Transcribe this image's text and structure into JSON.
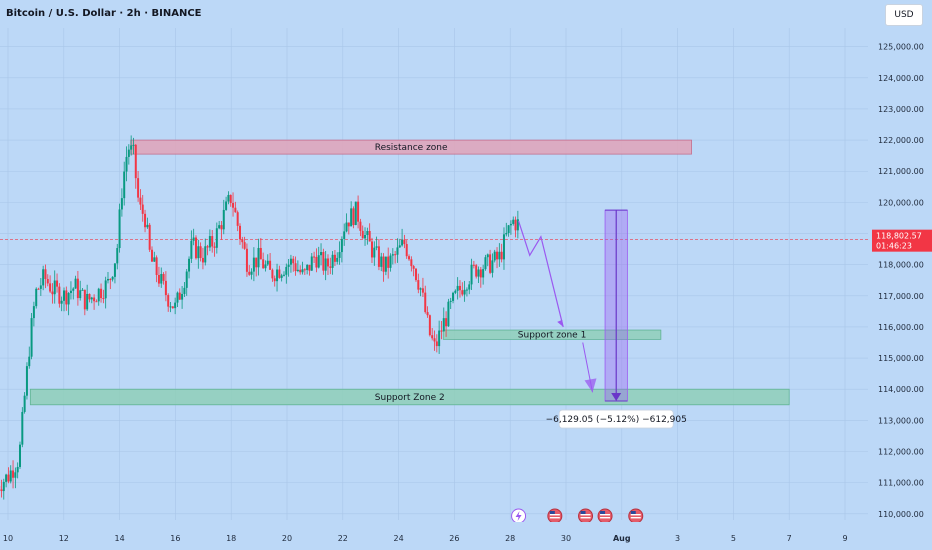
{
  "title": "Bitcoin / U.S. Dollar · 2h · BINANCE",
  "currency_button": "USD",
  "colors": {
    "background": "#bcd8f7",
    "up": "#089981",
    "down": "#f23645",
    "resistance": "#e0a3b8",
    "support": "#8fcfb9",
    "projection": "#9b59f0"
  },
  "chart_data": {
    "type": "candlestick",
    "title": "Bitcoin / U.S. Dollar · 2h · BINANCE",
    "y_ticks": [
      110000,
      111000,
      112000,
      113000,
      114000,
      115000,
      116000,
      117000,
      118000,
      119000,
      120000,
      121000,
      122000,
      123000,
      124000,
      125000
    ],
    "y_tick_labels": [
      "110,000.00",
      "111,000.00",
      "112,000.00",
      "113,000.00",
      "114,000.00",
      "115,000.00",
      "116,000.00",
      "117,000.00",
      "118,000.00",
      "119,000.00",
      "120,000.00",
      "121,000.00",
      "122,000.00",
      "123,000.00",
      "124,000.00",
      "125,000.00"
    ],
    "ylim": [
      109800,
      125600
    ],
    "x_tick_labels": [
      "10",
      "12",
      "14",
      "16",
      "18",
      "20",
      "22",
      "24",
      "26",
      "28",
      "30",
      "Aug",
      "3",
      "5",
      "7",
      "9"
    ],
    "current_price": {
      "price": "118,802.57",
      "countdown": "01:46:23",
      "value": 118802.57
    },
    "price_path": [
      {
        "d": 9.6,
        "p": 110900
      },
      {
        "d": 10.0,
        "p": 111200
      },
      {
        "d": 10.4,
        "p": 111800
      },
      {
        "d": 10.6,
        "p": 113800
      },
      {
        "d": 10.8,
        "p": 115700
      },
      {
        "d": 11.0,
        "p": 117100
      },
      {
        "d": 11.3,
        "p": 117600
      },
      {
        "d": 11.6,
        "p": 117200
      },
      {
        "d": 12.0,
        "p": 117000
      },
      {
        "d": 12.4,
        "p": 117300
      },
      {
        "d": 12.8,
        "p": 116800
      },
      {
        "d": 13.2,
        "p": 117100
      },
      {
        "d": 13.6,
        "p": 117400
      },
      {
        "d": 13.9,
        "p": 118400
      },
      {
        "d": 14.1,
        "p": 120600
      },
      {
        "d": 14.3,
        "p": 121800
      },
      {
        "d": 14.5,
        "p": 121500
      },
      {
        "d": 14.7,
        "p": 119800
      },
      {
        "d": 14.9,
        "p": 119600
      },
      {
        "d": 15.1,
        "p": 118200
      },
      {
        "d": 15.4,
        "p": 117600
      },
      {
        "d": 15.7,
        "p": 117000
      },
      {
        "d": 16.0,
        "p": 116600
      },
      {
        "d": 16.3,
        "p": 117500
      },
      {
        "d": 16.6,
        "p": 118600
      },
      {
        "d": 17.0,
        "p": 118300
      },
      {
        "d": 17.4,
        "p": 118800
      },
      {
        "d": 17.7,
        "p": 119500
      },
      {
        "d": 18.0,
        "p": 120200
      },
      {
        "d": 18.3,
        "p": 119000
      },
      {
        "d": 18.6,
        "p": 118000
      },
      {
        "d": 19.0,
        "p": 118200
      },
      {
        "d": 19.4,
        "p": 117700
      },
      {
        "d": 19.8,
        "p": 117900
      },
      {
        "d": 20.2,
        "p": 118100
      },
      {
        "d": 20.6,
        "p": 117600
      },
      {
        "d": 21.0,
        "p": 118300
      },
      {
        "d": 21.4,
        "p": 117900
      },
      {
        "d": 21.8,
        "p": 118500
      },
      {
        "d": 22.1,
        "p": 119400
      },
      {
        "d": 22.5,
        "p": 119700
      },
      {
        "d": 22.8,
        "p": 118900
      },
      {
        "d": 23.1,
        "p": 118400
      },
      {
        "d": 23.5,
        "p": 117900
      },
      {
        "d": 23.9,
        "p": 118300
      },
      {
        "d": 24.2,
        "p": 118700
      },
      {
        "d": 24.5,
        "p": 118100
      },
      {
        "d": 24.8,
        "p": 117200
      },
      {
        "d": 25.1,
        "p": 115800
      },
      {
        "d": 25.3,
        "p": 115300
      },
      {
        "d": 25.6,
        "p": 116100
      },
      {
        "d": 26.0,
        "p": 116900
      },
      {
        "d": 26.4,
        "p": 117500
      },
      {
        "d": 26.8,
        "p": 117900
      },
      {
        "d": 27.2,
        "p": 118000
      },
      {
        "d": 27.6,
        "p": 118200
      },
      {
        "d": 27.9,
        "p": 119000
      },
      {
        "d": 28.1,
        "p": 119400
      },
      {
        "d": 28.3,
        "p": 119300
      }
    ],
    "x_domain": [
      9.6,
      40.0
    ],
    "zones": [
      {
        "name": "Resistance zone",
        "from_day": 14.4,
        "to_day": 34.5,
        "low": 121550,
        "high": 122000
      },
      {
        "name": "Support zone 1",
        "from_day": 25.6,
        "to_day": 33.4,
        "low": 115600,
        "high": 115900
      },
      {
        "name": "Support Zone 2",
        "from_day": 10.8,
        "to_day": 38.0,
        "low": 113500,
        "high": 114000
      }
    ],
    "projection_path": [
      {
        "d": 28.3,
        "p": 119400
      },
      {
        "d": 28.7,
        "p": 118300
      },
      {
        "d": 29.1,
        "p": 118900
      },
      {
        "d": 29.9,
        "p": 116000
      }
    ],
    "measurement": {
      "label": "−6,129.05 (−5.12%) −612,905",
      "from_day": 31.4,
      "to_day": 32.2,
      "from_price": 119750,
      "to_price": 113620
    },
    "event_icons": 5
  }
}
